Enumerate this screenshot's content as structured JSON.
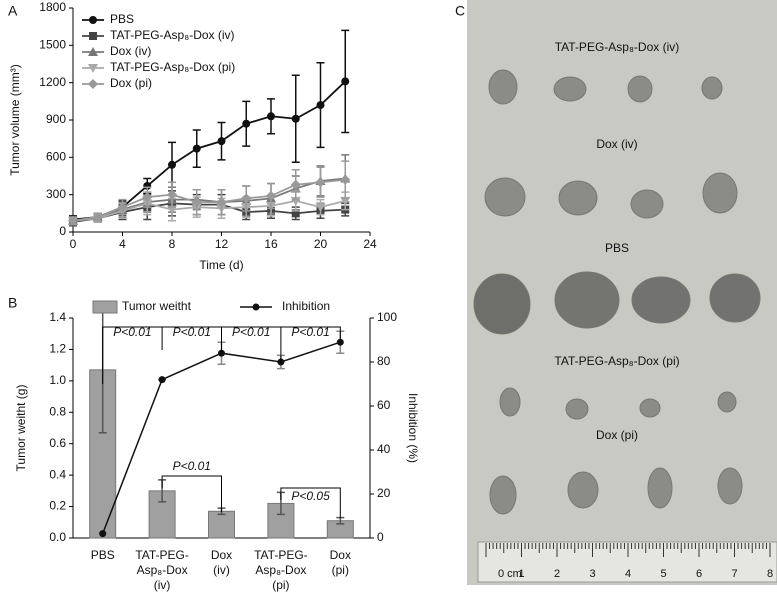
{
  "chart_data": [
    {
      "type": "line",
      "panel": "A",
      "xlabel": "Time (d)",
      "ylabel": "Tumor volume (mm³)",
      "x": [
        0,
        2,
        4,
        6,
        8,
        10,
        12,
        14,
        16,
        18,
        20,
        22
      ],
      "xlim": [
        0,
        24
      ],
      "xticks": [
        0,
        4,
        8,
        12,
        16,
        20,
        24
      ],
      "ylim": [
        0,
        1800
      ],
      "yticks": [
        0,
        300,
        600,
        900,
        1200,
        1500,
        1800
      ],
      "series": [
        {
          "name": "PBS",
          "color": "#111111",
          "marker": "circle",
          "values": [
            100,
            120,
            200,
            370,
            540,
            670,
            730,
            870,
            930,
            910,
            1020,
            1210
          ],
          "errors": [
            30,
            30,
            50,
            60,
            180,
            150,
            150,
            180,
            140,
            350,
            340,
            410
          ]
        },
        {
          "name": "TAT-PEG-Asp₈-Dox (iv)",
          "color": "#444444",
          "marker": "square",
          "values": [
            80,
            110,
            160,
            200,
            230,
            220,
            220,
            160,
            170,
            150,
            170,
            180
          ],
          "errors": [
            30,
            30,
            60,
            100,
            100,
            80,
            80,
            60,
            60,
            50,
            60,
            50
          ]
        },
        {
          "name": "Dox (iv)",
          "color": "#777777",
          "marker": "triangle",
          "values": [
            90,
            120,
            180,
            240,
            260,
            260,
            240,
            250,
            270,
            350,
            410,
            430
          ],
          "errors": [
            30,
            30,
            60,
            80,
            100,
            80,
            100,
            120,
            120,
            100,
            120,
            190
          ]
        },
        {
          "name": "TAT-PEG-Asp₈-Dox (pi)",
          "color": "#aaaaaa",
          "marker": "triangle-down",
          "values": [
            90,
            110,
            170,
            230,
            180,
            200,
            190,
            200,
            210,
            250,
            200,
            250
          ],
          "errors": [
            30,
            30,
            60,
            90,
            90,
            80,
            80,
            80,
            80,
            80,
            60,
            70
          ]
        },
        {
          "name": "Dox (pi)",
          "color": "#999999",
          "marker": "diamond",
          "values": [
            90,
            120,
            200,
            280,
            300,
            240,
            240,
            270,
            290,
            380,
            400,
            420
          ],
          "errors": [
            30,
            30,
            60,
            80,
            100,
            100,
            100,
            100,
            100,
            120,
            120,
            150
          ]
        }
      ]
    },
    {
      "type": "bar",
      "panel": "B",
      "ylabel": "Tumor weitht (g)",
      "y2label": "Inhibition (%)",
      "categories": [
        "PBS",
        "TAT-PEG-\nAsp₈-Dox\n(iv)",
        "Dox\n(iv)",
        "TAT-PEG-\nAsp₈-Dox\n(pi)",
        "Dox\n(pi)"
      ],
      "ylim": [
        0,
        1.4
      ],
      "yticks": [
        {
          "value": 0,
          "label": "0.0"
        },
        0.2,
        0.4,
        0.6,
        0.8,
        {
          "value": 1,
          "label": "1.0"
        },
        1.2,
        1.4
      ],
      "y2lim": [
        0,
        100
      ],
      "y2ticks": [
        0,
        20,
        40,
        60,
        80,
        100
      ],
      "series": [
        {
          "name": "Tumor weitht",
          "color": "#a0a0a0",
          "values": [
            1.07,
            0.3,
            0.17,
            0.22,
            0.11
          ],
          "errors": [
            0.4,
            0.07,
            0.02,
            0.07,
            0.02
          ]
        },
        {
          "name": "Inhibition",
          "color": "#111111",
          "axis": "y2",
          "values": [
            2,
            72,
            84,
            80,
            89
          ],
          "errors": [
            0,
            0,
            5,
            3,
            5
          ]
        }
      ],
      "annotations": [
        "P<0.01",
        "P<0.01",
        "P<0.01",
        "P<0.01",
        "P<0.01",
        "P<0.05"
      ]
    }
  ],
  "photo": {
    "panel": "C",
    "labels": [
      "TAT-PEG-Asp₈-Dox (iv)",
      "Dox (iv)",
      "PBS",
      "TAT-PEG-Asp₈-Dox (pi)",
      "Dox (pi)"
    ],
    "ruler": [
      "0 cm",
      "1",
      "2",
      "3",
      "4",
      "5",
      "6",
      "7",
      "8"
    ]
  }
}
